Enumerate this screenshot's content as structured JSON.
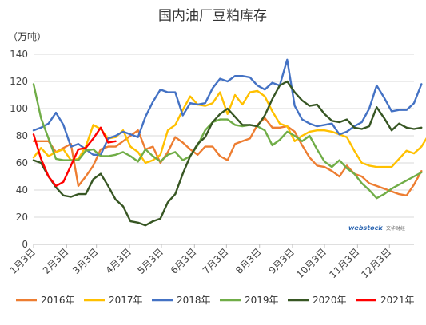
{
  "chart_data": {
    "type": "line",
    "title": "国内油厂豆粕库存",
    "unit_label": "（万吨）",
    "ylim": [
      0,
      140
    ],
    "yticks": [
      0,
      20,
      40,
      60,
      80,
      100,
      120,
      140
    ],
    "x_tick_labels": [
      "1月3日",
      "2月3日",
      "3月3日",
      "4月3日",
      "5月3日",
      "6月3日",
      "7月3日",
      "8月3日",
      "9月3日",
      "10月3日",
      "11月3日",
      "12月3日"
    ],
    "x_tick_weeks": [
      0,
      4.43,
      8.43,
      12.86,
      17.14,
      21.57,
      25.86,
      30.29,
      34.71,
      39,
      43.43,
      47.71
    ],
    "weeks_total": 51,
    "grid": "horizontal",
    "legend_position": "bottom",
    "watermark": {
      "brand": "webstock",
      "brand_cn": "文华财经"
    },
    "series": [
      {
        "name": "2016年",
        "color": "#ed7d31",
        "values": [
          76,
          76,
          76,
          68,
          71,
          74,
          43,
          50,
          58,
          70,
          72,
          72,
          76,
          80,
          84,
          70,
          72,
          60,
          68,
          79,
          75,
          70,
          66,
          72,
          72,
          65,
          62,
          74,
          76,
          78,
          88,
          93,
          86,
          86,
          87,
          83,
          73,
          64,
          58,
          57,
          54,
          50,
          58,
          52,
          50,
          45,
          43,
          41,
          39,
          37,
          36,
          44,
          54
        ]
      },
      {
        "name": "2017年",
        "color": "#ffc000",
        "values": [
          64,
          71,
          65,
          68,
          70,
          62,
          63,
          72,
          88,
          85,
          78,
          79,
          84,
          72,
          68,
          60,
          62,
          66,
          84,
          88,
          99,
          109,
          103,
          102,
          104,
          112,
          96,
          110,
          103,
          112,
          113,
          109,
          98,
          89,
          87,
          76,
          80,
          83,
          84,
          84,
          83,
          81,
          79,
          69,
          60,
          58,
          57,
          57,
          57,
          63,
          69,
          67,
          72,
          81
        ]
      },
      {
        "name": "2018年",
        "color": "#4472c4",
        "values": [
          84,
          86,
          89,
          97,
          88,
          72,
          74,
          70,
          66,
          66,
          78,
          80,
          83,
          81,
          79,
          94,
          105,
          114,
          112,
          112,
          95,
          104,
          103,
          104,
          115,
          122,
          120,
          124,
          124,
          123,
          117,
          114,
          119,
          117,
          136,
          102,
          92,
          89,
          87,
          88,
          89,
          81,
          83,
          87,
          90,
          100,
          117,
          108,
          98,
          99,
          99,
          104,
          118
        ]
      },
      {
        "name": "2019年",
        "color": "#70ad47",
        "values": [
          118,
          93,
          78,
          63,
          62,
          62,
          62,
          69,
          70,
          65,
          65,
          66,
          68,
          65,
          61,
          70,
          65,
          61,
          66,
          68,
          62,
          65,
          73,
          84,
          90,
          92,
          92,
          88,
          87,
          88,
          87,
          84,
          73,
          77,
          83,
          80,
          76,
          80,
          70,
          61,
          57,
          62,
          56,
          52,
          45,
          40,
          34,
          37,
          41,
          44,
          47,
          50,
          53
        ]
      },
      {
        "name": "2020年",
        "color": "#375623",
        "values": [
          62,
          60,
          50,
          42,
          36,
          35,
          37,
          37,
          48,
          52,
          43,
          33,
          28,
          17,
          16,
          14,
          17,
          19,
          31,
          37,
          52,
          65,
          74,
          79,
          90,
          96,
          100,
          94,
          88,
          88,
          87,
          95,
          107,
          117,
          120,
          112,
          106,
          102,
          103,
          96,
          91,
          90,
          92,
          86,
          85,
          87,
          101,
          93,
          84,
          89,
          86,
          85,
          86
        ]
      },
      {
        "name": "2021年",
        "color": "#ff0000",
        "values": [
          81,
          63,
          50,
          43,
          46,
          58,
          70,
          71,
          78,
          86,
          75,
          76
        ]
      }
    ]
  }
}
